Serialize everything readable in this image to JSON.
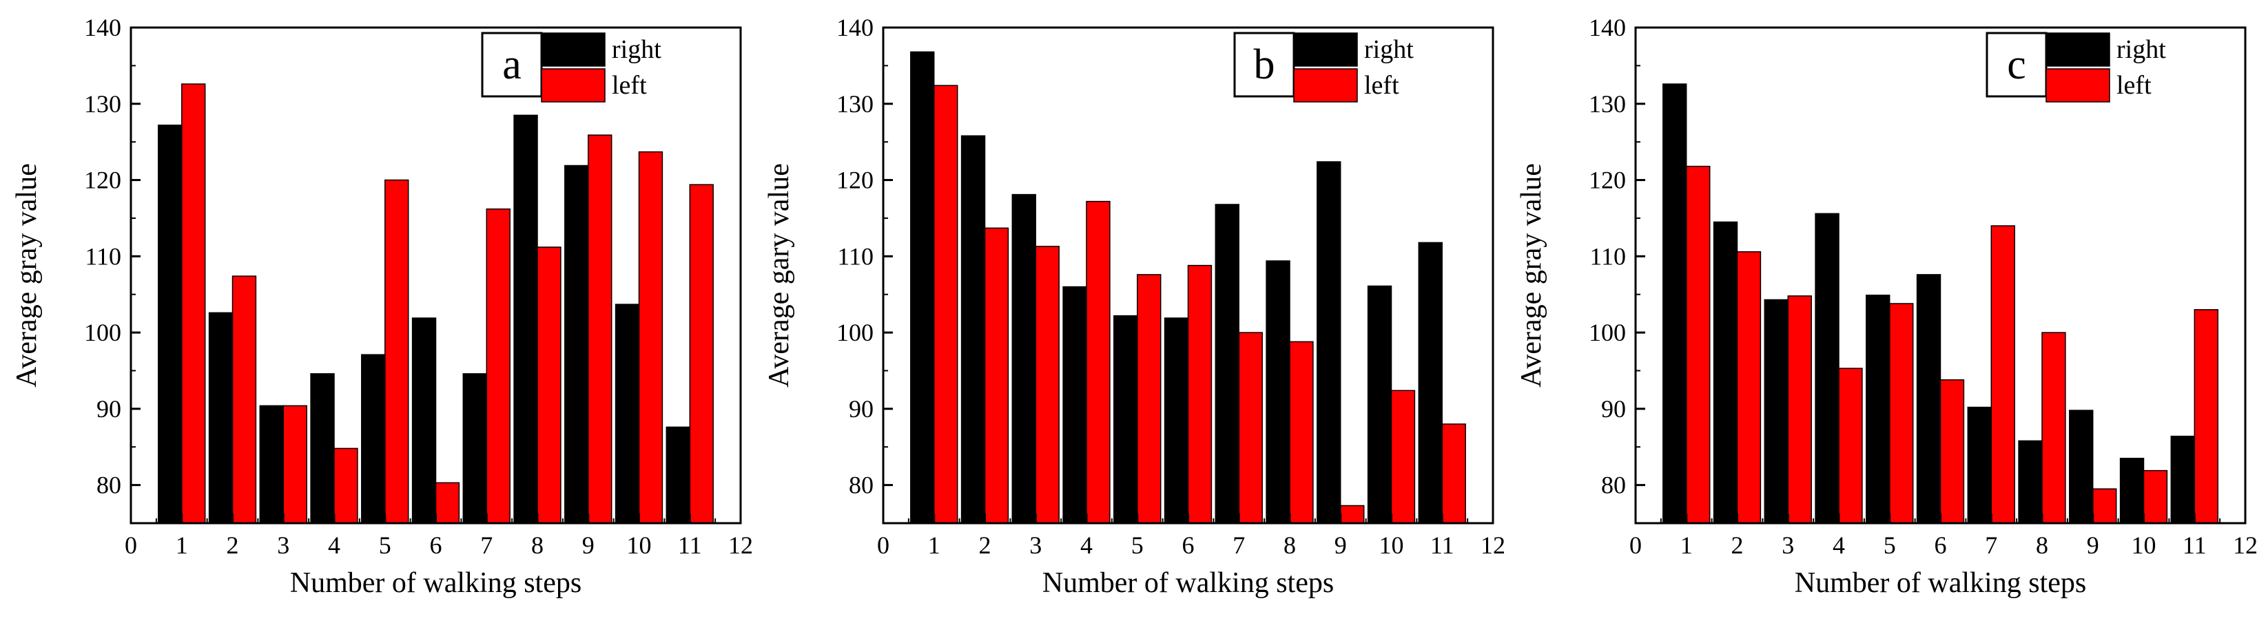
{
  "colors": {
    "right": "#000000",
    "left": "#ff0000"
  },
  "chart_data": [
    {
      "type": "bar",
      "panel_label": "a",
      "xlabel": "Number of walking steps",
      "ylabel": "Average gray value",
      "xlim": [
        0,
        12
      ],
      "ylim": [
        75,
        140
      ],
      "x_ticks": [
        0,
        1,
        2,
        3,
        4,
        5,
        6,
        7,
        8,
        9,
        10,
        11,
        12
      ],
      "y_ticks": [
        80,
        90,
        100,
        110,
        120,
        130,
        140
      ],
      "categories": [
        1,
        2,
        3,
        4,
        5,
        6,
        7,
        8,
        9,
        10,
        11
      ],
      "series": [
        {
          "name": "right",
          "values": [
            127.2,
            102.6,
            90.4,
            94.6,
            97.1,
            101.9,
            94.6,
            128.5,
            121.9,
            103.7,
            87.6
          ]
        },
        {
          "name": "left",
          "values": [
            132.6,
            107.4,
            90.4,
            84.8,
            120.0,
            80.3,
            116.2,
            111.2,
            125.9,
            123.7,
            119.4
          ]
        }
      ],
      "legend": "top-right"
    },
    {
      "type": "bar",
      "panel_label": "b",
      "xlabel": "Number of walking steps",
      "ylabel": "Average gary value",
      "xlim": [
        0,
        12
      ],
      "ylim": [
        75,
        140
      ],
      "x_ticks": [
        0,
        1,
        2,
        3,
        4,
        5,
        6,
        7,
        8,
        9,
        10,
        11,
        12
      ],
      "y_ticks": [
        80,
        90,
        100,
        110,
        120,
        130,
        140
      ],
      "categories": [
        1,
        2,
        3,
        4,
        5,
        6,
        7,
        8,
        9,
        10,
        11
      ],
      "series": [
        {
          "name": "right",
          "values": [
            136.8,
            125.8,
            118.1,
            106.0,
            102.2,
            101.9,
            116.8,
            109.4,
            122.4,
            106.1,
            111.8
          ]
        },
        {
          "name": "left",
          "values": [
            132.4,
            113.7,
            111.3,
            117.2,
            107.6,
            108.8,
            100.0,
            98.8,
            77.3,
            92.4,
            88.0
          ]
        }
      ],
      "legend": "top-right"
    },
    {
      "type": "bar",
      "panel_label": "c",
      "xlabel": "Number of walking steps",
      "ylabel": "Average gray value",
      "xlim": [
        0,
        12
      ],
      "ylim": [
        75,
        140
      ],
      "x_ticks": [
        0,
        1,
        2,
        3,
        4,
        5,
        6,
        7,
        8,
        9,
        10,
        11,
        12
      ],
      "y_ticks": [
        80,
        90,
        100,
        110,
        120,
        130,
        140
      ],
      "categories": [
        1,
        2,
        3,
        4,
        5,
        6,
        7,
        8,
        9,
        10,
        11
      ],
      "series": [
        {
          "name": "right",
          "values": [
            132.6,
            114.5,
            104.3,
            115.6,
            104.9,
            107.6,
            90.2,
            85.8,
            89.8,
            83.5,
            86.4
          ]
        },
        {
          "name": "left",
          "values": [
            121.8,
            110.6,
            104.8,
            95.3,
            103.8,
            93.8,
            114.0,
            100.0,
            79.5,
            81.9,
            103.0
          ]
        }
      ],
      "legend": "top-right"
    }
  ]
}
